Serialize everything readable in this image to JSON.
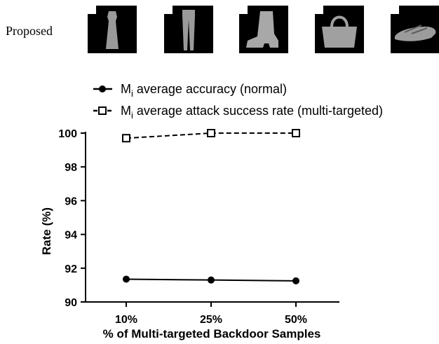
{
  "header": {
    "row_label": "Proposed",
    "thumbnails": [
      {
        "icon": "dress-icon"
      },
      {
        "icon": "trousers-icon"
      },
      {
        "icon": "ankle-boot-icon"
      },
      {
        "icon": "bag-icon"
      },
      {
        "icon": "sandal-icon"
      }
    ]
  },
  "chart_data": {
    "type": "line",
    "categories": [
      "10%",
      "25%",
      "50%"
    ],
    "xlabel": "% of Multi-targeted Backdoor Samples",
    "ylabel": "Rate (%)",
    "ylim": [
      90,
      100
    ],
    "yticks": [
      90,
      92,
      94,
      96,
      98,
      100
    ],
    "grid": false,
    "legend_position": "top",
    "series": [
      {
        "name": "average accuracy (normal)",
        "name_prefix": "M",
        "name_subscript": "i",
        "values": [
          91.35,
          91.3,
          91.25
        ],
        "marker": "filled-circle",
        "line_style": "solid",
        "color": "#000000"
      },
      {
        "name": "average attack success rate (multi-targeted)",
        "name_prefix": "M",
        "name_subscript": "i",
        "values": [
          99.7,
          100.0,
          100.0
        ],
        "marker": "open-square",
        "line_style": "dashed",
        "color": "#000000"
      }
    ]
  }
}
